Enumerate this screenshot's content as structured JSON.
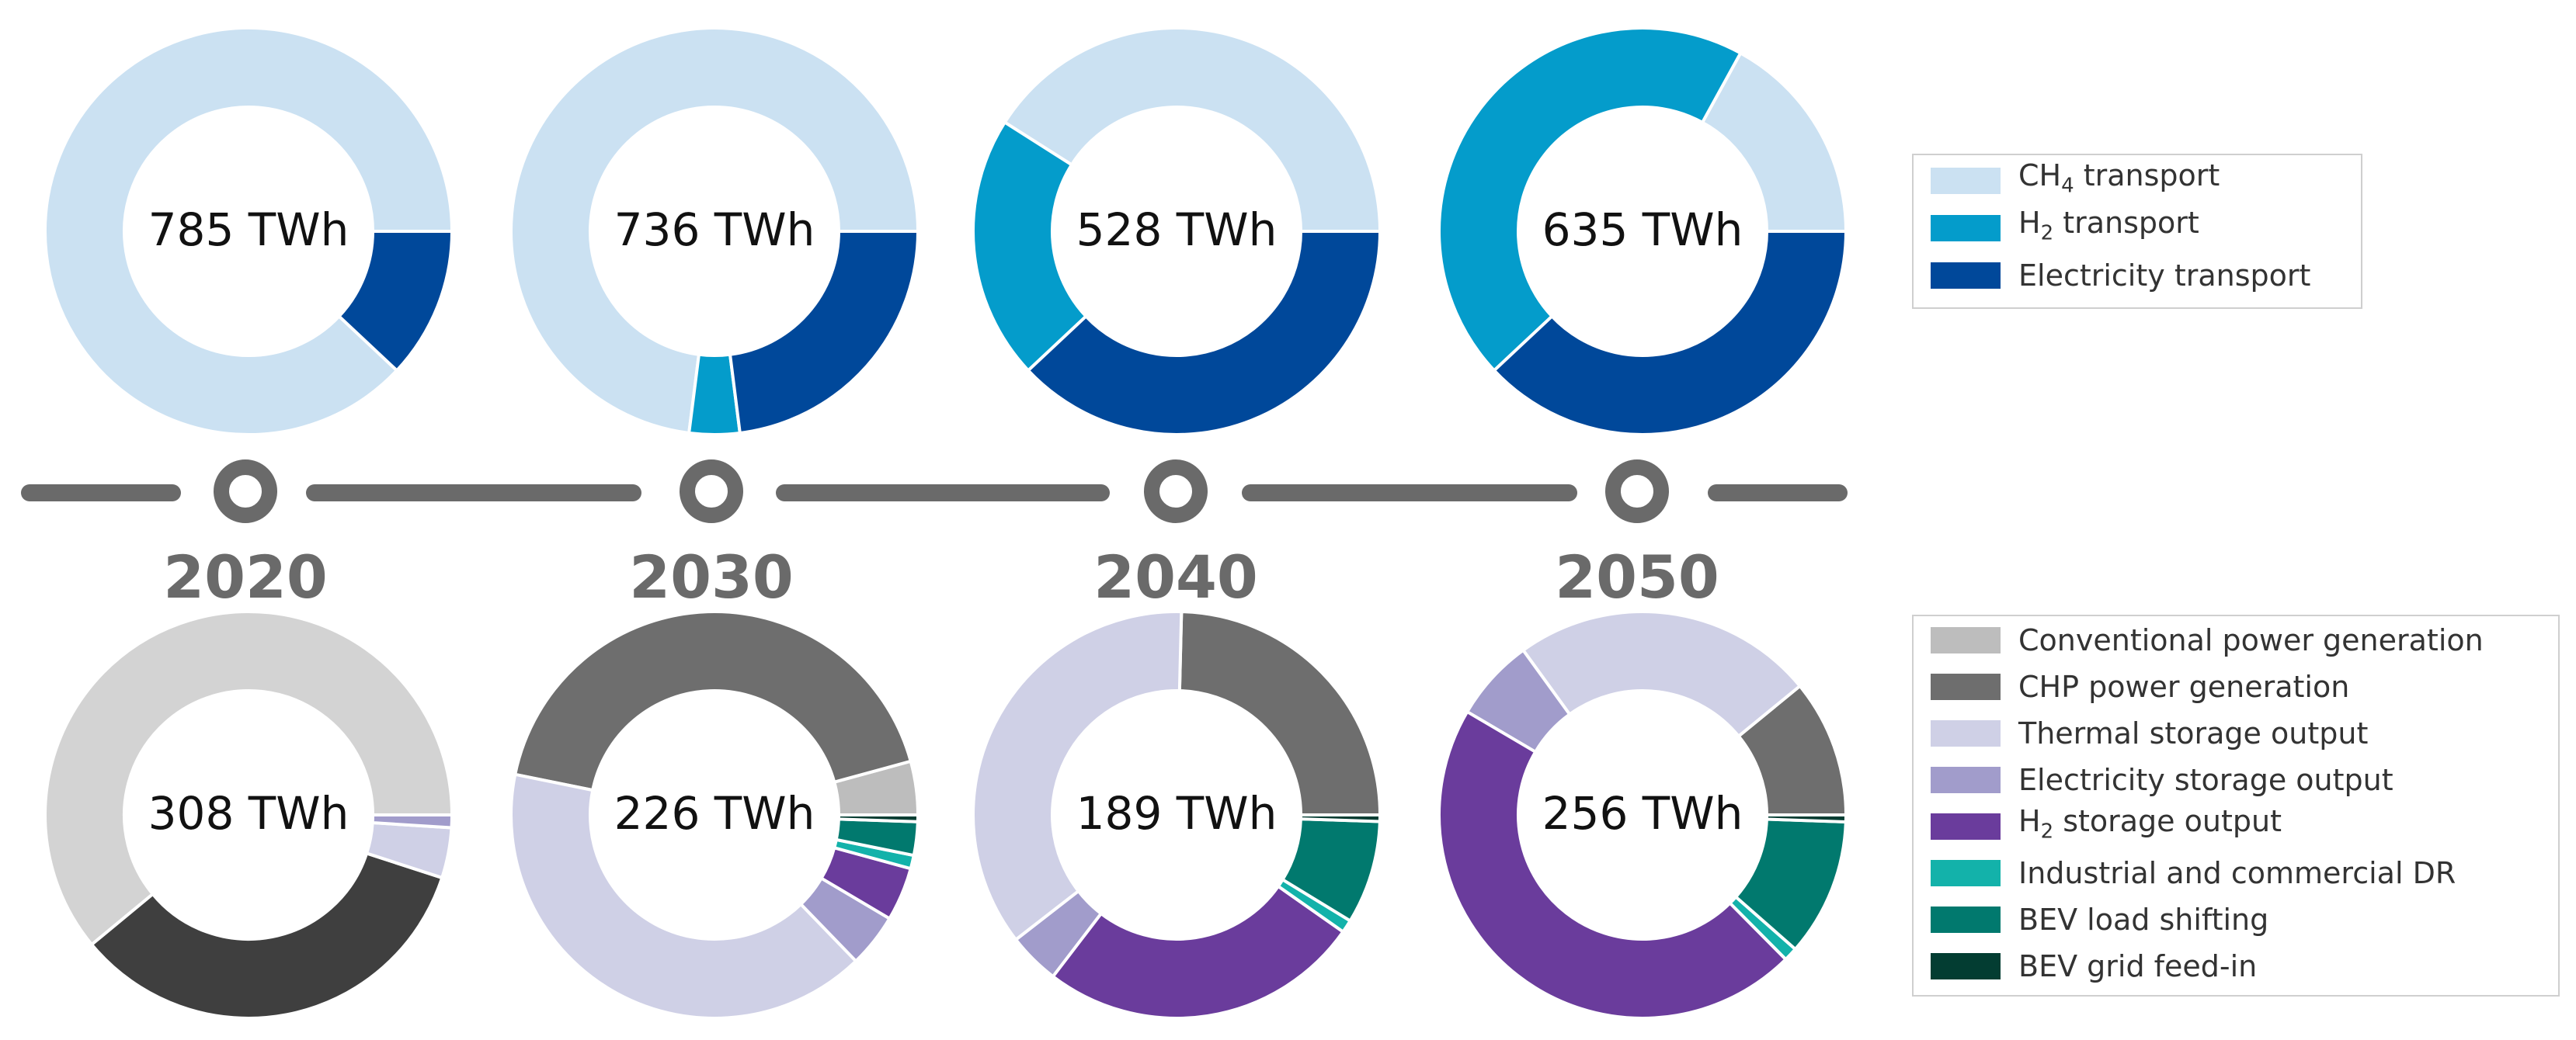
{
  "chart_data": [
    {
      "type": "pie",
      "style": "donut",
      "row": "transport",
      "year": "2020",
      "center_label": "785 TWh",
      "series": [
        {
          "name": "CH4 transport",
          "value": 88
        },
        {
          "name": "H2 transport",
          "value": 0
        },
        {
          "name": "Electricity transport",
          "value": 12
        }
      ]
    },
    {
      "type": "pie",
      "style": "donut",
      "row": "transport",
      "year": "2030",
      "center_label": "736 TWh",
      "series": [
        {
          "name": "CH4 transport",
          "value": 73
        },
        {
          "name": "H2 transport",
          "value": 4
        },
        {
          "name": "Electricity transport",
          "value": 23
        }
      ]
    },
    {
      "type": "pie",
      "style": "donut",
      "row": "transport",
      "year": "2040",
      "center_label": "528 TWh",
      "series": [
        {
          "name": "CH4 transport",
          "value": 41
        },
        {
          "name": "H2 transport",
          "value": 21
        },
        {
          "name": "Electricity transport",
          "value": 38
        }
      ]
    },
    {
      "type": "pie",
      "style": "donut",
      "row": "transport",
      "year": "2050",
      "center_label": "635 TWh",
      "series": [
        {
          "name": "CH4 transport",
          "value": 17
        },
        {
          "name": "H2 transport",
          "value": 45
        },
        {
          "name": "Electricity transport",
          "value": 38
        }
      ]
    },
    {
      "type": "pie",
      "style": "donut",
      "row": "flexibility",
      "year": "2020",
      "center_label": "308 TWh",
      "series": [
        {
          "name": "Conventional power generation",
          "value": 61
        },
        {
          "name": "CHP power generation",
          "value": 34
        },
        {
          "name": "Thermal storage output",
          "value": 4
        },
        {
          "name": "Electricity storage output",
          "value": 1
        }
      ]
    },
    {
      "type": "pie",
      "style": "donut",
      "row": "flexibility",
      "year": "2030",
      "center_label": "226 TWh",
      "series": [
        {
          "name": "Conventional power generation",
          "value": 4
        },
        {
          "name": "CHP power generation",
          "value": 40
        },
        {
          "name": "Thermal storage output",
          "value": 38
        },
        {
          "name": "Electricity storage output",
          "value": 4
        },
        {
          "name": "H2 storage output",
          "value": 4
        },
        {
          "name": "Industrial and commercial DR",
          "value": 1
        },
        {
          "name": "BEV load shifting",
          "value": 2.5
        },
        {
          "name": "BEV grid feed-in",
          "value": 0.5
        }
      ]
    },
    {
      "type": "pie",
      "style": "donut",
      "row": "flexibility",
      "year": "2040",
      "center_label": "189 TWh",
      "series": [
        {
          "name": "CHP power generation",
          "value": 24
        },
        {
          "name": "Thermal storage output",
          "value": 35
        },
        {
          "name": "Electricity storage output",
          "value": 4
        },
        {
          "name": "H2 storage output",
          "value": 25
        },
        {
          "name": "Industrial and commercial DR",
          "value": 1
        },
        {
          "name": "BEV load shifting",
          "value": 8
        },
        {
          "name": "BEV grid feed-in",
          "value": 0.5
        }
      ]
    },
    {
      "type": "pie",
      "style": "donut",
      "row": "flexibility",
      "year": "2050",
      "center_label": "256 TWh",
      "series": [
        {
          "name": "CHP power generation",
          "value": 10
        },
        {
          "name": "Thermal storage output",
          "value": 22
        },
        {
          "name": "Electricity storage output",
          "value": 6
        },
        {
          "name": "H2 storage output",
          "value": 42
        },
        {
          "name": "Industrial and commercial DR",
          "value": 1
        },
        {
          "name": "BEV load shifting",
          "value": 10
        },
        {
          "name": "BEV grid feed-in",
          "value": 0.5
        }
      ]
    }
  ],
  "timeline": {
    "years": [
      "2020",
      "2030",
      "2040",
      "2050"
    ]
  },
  "legend_top": [
    {
      "key": "CH4 transport",
      "text_main": "CH",
      "text_sub": "4",
      "text_rest": " transport",
      "color": "#cbe1f2"
    },
    {
      "key": "H2 transport",
      "text_main": "H",
      "text_sub": "2",
      "text_rest": " transport",
      "color": "#049ccb"
    },
    {
      "key": "Electricity transport",
      "text_main": "Electricity transport",
      "text_sub": "",
      "text_rest": "",
      "color": "#00489a"
    }
  ],
  "legend_bottom": [
    {
      "key": "Conventional power generation",
      "text_main": "Conventional power generation",
      "text_sub": "",
      "text_rest": "",
      "color": "#bdbdbd"
    },
    {
      "key": "CHP power generation",
      "text_main": "CHP power generation",
      "text_sub": "",
      "text_rest": "",
      "color": "#6e6e6e"
    },
    {
      "key": "Thermal storage output",
      "text_main": "Thermal storage output",
      "text_sub": "",
      "text_rest": "",
      "color": "#cfd0e6"
    },
    {
      "key": "Electricity storage output",
      "text_main": "Electricity storage output",
      "text_sub": "",
      "text_rest": "",
      "color": "#a19ccb"
    },
    {
      "key": "H2 storage output",
      "text_main": "H",
      "text_sub": "2",
      "text_rest": " storage output",
      "color": "#6a3c9c"
    },
    {
      "key": "Industrial and commercial DR",
      "text_main": "Industrial and commercial DR",
      "text_sub": "",
      "text_rest": "",
      "color": "#13b2aa"
    },
    {
      "key": "BEV load shifting",
      "text_main": "BEV load shifting",
      "text_sub": "",
      "text_rest": "",
      "color": "#01796e"
    },
    {
      "key": "BEV grid feed-in",
      "text_main": "BEV grid feed-in",
      "text_sub": "",
      "text_rest": "",
      "color": "#033d32"
    }
  ],
  "colors": {
    "timeline": "#6a6a6a",
    "year_text": "#6a6a6a",
    "center_text": "#111111",
    "legend_border": "#cfcfcf",
    "conventional_in_2020": "#d3d3d3",
    "chp_in_2020": "#3f3f3f"
  }
}
